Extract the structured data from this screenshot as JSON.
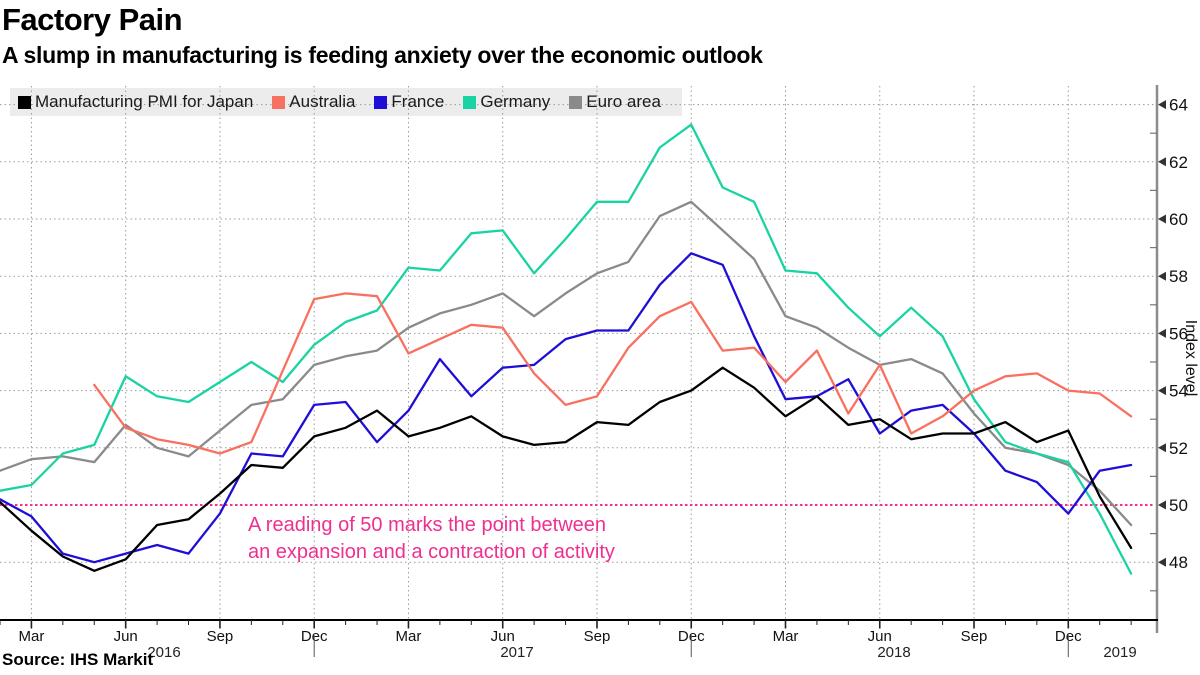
{
  "header": {
    "title": "Factory Pain",
    "subtitle": "A slump in manufacturing is feeding anxiety over the economic outlook"
  },
  "source": {
    "text": "Source: IHS Markit"
  },
  "annotation": {
    "line1": "A reading of 50 marks the point between",
    "line2": "an expansion and a contraction of activity",
    "color": "#ef2f8f"
  },
  "legend": {
    "background": "#ececec"
  },
  "y_axis": {
    "title": "Index level",
    "ticks": [
      48,
      50,
      52,
      54,
      56,
      58,
      60,
      62,
      64
    ],
    "minor_ticks": [
      47,
      49,
      51,
      53,
      55,
      57,
      59,
      61,
      63
    ]
  },
  "x_axis": {
    "quarters": [
      {
        "label": "Mar",
        "index": 1
      },
      {
        "label": "Jun",
        "index": 4
      },
      {
        "label": "Sep",
        "index": 7
      },
      {
        "label": "Dec",
        "index": 10
      },
      {
        "label": "Mar",
        "index": 13
      },
      {
        "label": "Jun",
        "index": 16
      },
      {
        "label": "Sep",
        "index": 19
      },
      {
        "label": "Dec",
        "index": 22
      },
      {
        "label": "Mar",
        "index": 25
      },
      {
        "label": "Jun",
        "index": 28
      },
      {
        "label": "Sep",
        "index": 31
      },
      {
        "label": "Dec",
        "index": 34
      }
    ],
    "years": [
      {
        "label": "2016",
        "x": 164
      },
      {
        "label": "2017",
        "x": 517
      },
      {
        "label": "2018",
        "x": 894
      },
      {
        "label": "2019",
        "x": 1120
      }
    ],
    "year_separator_indices": [
      10,
      22,
      34
    ]
  },
  "chart_data": {
    "type": "line",
    "title": "Factory Pain",
    "subtitle": "A slump in manufacturing is feeding anxiety over the economic outlook",
    "ylabel": "Index level",
    "ylim": [
      46,
      64.8
    ],
    "grid": true,
    "legend_position": "top-left",
    "reference_line": {
      "value": 50,
      "color": "#fb2d8f"
    },
    "x": [
      "Feb 2016",
      "Mar 2016",
      "Apr 2016",
      "May 2016",
      "Jun 2016",
      "Jul 2016",
      "Aug 2016",
      "Sep 2016",
      "Oct 2016",
      "Nov 2016",
      "Dec 2016",
      "Jan 2017",
      "Feb 2017",
      "Mar 2017",
      "Apr 2017",
      "May 2017",
      "Jun 2017",
      "Jul 2017",
      "Aug 2017",
      "Sep 2017",
      "Oct 2017",
      "Nov 2017",
      "Dec 2017",
      "Jan 2018",
      "Feb 2018",
      "Mar 2018",
      "Apr 2018",
      "May 2018",
      "Jun 2018",
      "Jul 2018",
      "Aug 2018",
      "Sep 2018",
      "Oct 2018",
      "Nov 2018",
      "Dec 2018",
      "Jan 2019",
      "Feb 2019"
    ],
    "series": [
      {
        "name": "Manufacturing PMI for Japan",
        "color": "#000000",
        "values": [
          50.1,
          49.1,
          48.2,
          47.7,
          48.1,
          49.3,
          49.5,
          50.4,
          51.4,
          51.3,
          52.4,
          52.7,
          53.3,
          52.4,
          52.7,
          53.1,
          52.4,
          52.1,
          52.2,
          52.9,
          52.8,
          53.6,
          54.0,
          54.8,
          54.1,
          53.1,
          53.8,
          52.8,
          53.0,
          52.3,
          52.5,
          52.5,
          52.9,
          52.2,
          52.6,
          50.3,
          48.5
        ]
      },
      {
        "name": "Australia",
        "color": "#f8705f",
        "values": [
          null,
          null,
          null,
          54.2,
          52.7,
          52.3,
          52.1,
          51.8,
          52.2,
          54.7,
          57.2,
          57.4,
          57.3,
          55.3,
          55.8,
          56.3,
          56.2,
          54.6,
          53.5,
          53.8,
          55.5,
          56.6,
          57.1,
          55.4,
          55.5,
          54.3,
          55.4,
          53.2,
          54.9,
          52.5,
          53.1,
          54.0,
          54.5,
          54.6,
          54.0,
          53.9,
          53.1
        ]
      },
      {
        "name": "France",
        "color": "#1f0fd6",
        "values": [
          50.2,
          49.6,
          48.3,
          48.0,
          48.3,
          48.6,
          48.3,
          49.7,
          51.8,
          51.7,
          53.5,
          53.6,
          52.2,
          53.3,
          55.1,
          53.8,
          54.8,
          54.9,
          55.8,
          56.1,
          56.1,
          57.7,
          58.8,
          58.4,
          55.9,
          53.7,
          53.8,
          54.4,
          52.5,
          53.3,
          53.5,
          52.5,
          51.2,
          50.8,
          49.7,
          51.2,
          51.4
        ]
      },
      {
        "name": "Germany",
        "color": "#19d3a2",
        "values": [
          50.5,
          50.7,
          51.8,
          52.1,
          54.5,
          53.8,
          53.6,
          54.3,
          55.0,
          54.3,
          55.6,
          56.4,
          56.8,
          58.3,
          58.2,
          59.5,
          59.6,
          58.1,
          59.3,
          60.6,
          60.6,
          62.5,
          63.3,
          61.1,
          60.6,
          58.2,
          58.1,
          56.9,
          55.9,
          56.9,
          55.9,
          53.7,
          52.2,
          51.8,
          51.5,
          49.7,
          47.6
        ]
      },
      {
        "name": "Euro area",
        "color": "#8a8a8a",
        "values": [
          51.2,
          51.6,
          51.7,
          51.5,
          52.8,
          52.0,
          51.7,
          52.6,
          53.5,
          53.7,
          54.9,
          55.2,
          55.4,
          56.2,
          56.7,
          57.0,
          57.4,
          56.6,
          57.4,
          58.1,
          58.5,
          60.1,
          60.6,
          59.6,
          58.6,
          56.6,
          56.2,
          55.5,
          54.9,
          55.1,
          54.6,
          53.2,
          52.0,
          51.8,
          51.4,
          50.5,
          49.3
        ]
      }
    ]
  }
}
